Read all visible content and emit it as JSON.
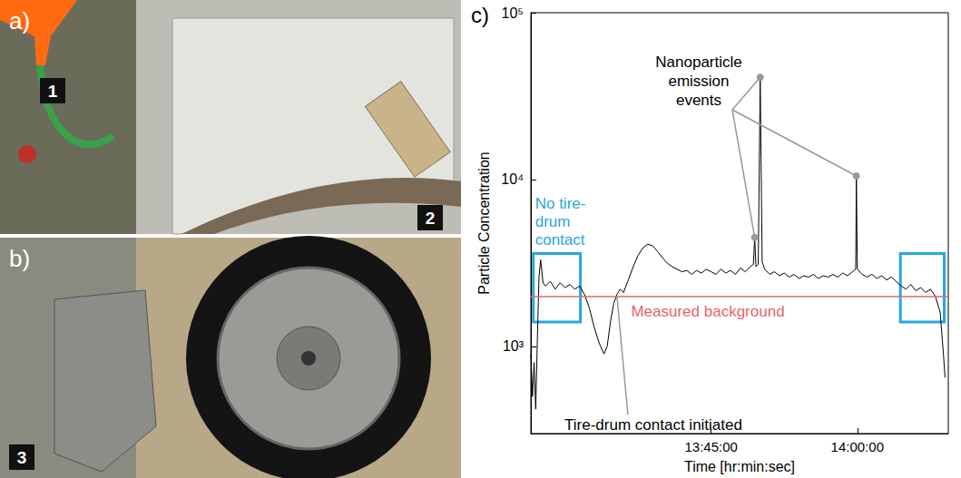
{
  "panels": [
    {
      "label": "a)",
      "markers": [
        "1",
        "2"
      ]
    },
    {
      "label": "b)",
      "markers": [
        "3"
      ]
    },
    {
      "label": "c)"
    }
  ],
  "chart_data": {
    "type": "line",
    "log": "y",
    "grid": false,
    "xlabel": "Time [hr:min:sec]",
    "ylabel": "Particle Concentration",
    "xlim": [
      "13:26:30",
      "14:09:20"
    ],
    "xticks": [
      "13:45:00",
      "14:00:00"
    ],
    "ylim": [
      300,
      100000
    ],
    "yticks": [
      {
        "value": 1000,
        "label": "10³"
      },
      {
        "value": 10000,
        "label": "10⁴"
      },
      {
        "value": 100000,
        "label": "10⁵"
      }
    ],
    "x": [
      "13:26:30",
      "13:26:40",
      "13:26:50",
      "13:27:00",
      "13:27:10",
      "13:27:20",
      "13:27:30",
      "13:27:45",
      "13:28:00",
      "13:28:30",
      "13:29:00",
      "13:29:30",
      "13:30:00",
      "13:30:30",
      "13:31:00",
      "13:31:30",
      "13:32:00",
      "13:32:30",
      "13:33:00",
      "13:33:30",
      "13:34:00",
      "13:34:20",
      "13:34:40",
      "13:35:00",
      "13:35:20",
      "13:35:40",
      "13:36:00",
      "13:36:30",
      "13:37:00",
      "13:37:30",
      "13:38:00",
      "13:38:30",
      "13:39:00",
      "13:39:30",
      "13:40:00",
      "13:40:30",
      "13:41:00",
      "13:41:30",
      "13:42:00",
      "13:42:30",
      "13:43:00",
      "13:43:30",
      "13:44:00",
      "13:44:30",
      "13:45:00",
      "13:45:30",
      "13:46:00",
      "13:46:30",
      "13:47:00",
      "13:47:30",
      "13:48:00",
      "13:48:30",
      "13:49:00",
      "13:49:20",
      "13:49:28",
      "13:49:36",
      "13:49:50",
      "13:50:02",
      "13:50:14",
      "13:50:30",
      "13:51:00",
      "13:51:30",
      "13:52:00",
      "13:52:30",
      "13:53:00",
      "13:53:30",
      "13:54:00",
      "13:54:30",
      "13:55:00",
      "13:55:30",
      "13:56:00",
      "13:56:30",
      "13:57:00",
      "13:57:30",
      "13:58:00",
      "13:58:30",
      "13:59:00",
      "13:59:30",
      "13:59:50",
      "13:59:54",
      "14:00:00",
      "14:00:30",
      "14:01:00",
      "14:01:30",
      "14:02:00",
      "14:02:30",
      "14:03:00",
      "14:03:30",
      "14:04:00",
      "14:04:30",
      "14:05:00",
      "14:05:30",
      "14:06:00",
      "14:06:30",
      "14:07:00",
      "14:07:30",
      "14:08:00",
      "14:08:30",
      "14:08:50",
      "14:09:00"
    ],
    "series": [
      {
        "color": "#000000",
        "values": [
          900,
          500,
          800,
          420,
          1100,
          2600,
          3300,
          2400,
          2300,
          2450,
          2200,
          2400,
          2250,
          2350,
          2200,
          2300,
          2050,
          1700,
          1300,
          1050,
          900,
          1000,
          1400,
          1800,
          2050,
          2200,
          2100,
          2500,
          3000,
          3500,
          3900,
          4100,
          4000,
          3700,
          3400,
          3150,
          3000,
          2900,
          2800,
          2850,
          2700,
          2850,
          2750,
          2900,
          2800,
          2700,
          2900,
          2750,
          2850,
          2700,
          2950,
          2800,
          3000,
          3100,
          4500,
          3000,
          3100,
          41000,
          3200,
          2900,
          2700,
          2800,
          2650,
          2750,
          2600,
          2700,
          2550,
          2650,
          2600,
          2700,
          2550,
          2650,
          2600,
          2700,
          2600,
          2750,
          2650,
          2800,
          2900,
          10500,
          2900,
          2700,
          2600,
          2700,
          2550,
          2650,
          2500,
          2600,
          2450,
          2300,
          2200,
          2350,
          2150,
          2250,
          2100,
          2200,
          2000,
          1600,
          900,
          650
        ]
      }
    ],
    "background": {
      "label": "Measured background",
      "value": 2000,
      "color": "#e8646c"
    },
    "regions": {
      "label": "No tire-drum contact",
      "color": "#2aa6e0",
      "spans": [
        {
          "x": [
            "13:26:45",
            "13:31:35"
          ],
          "y": [
            1400,
            3600
          ]
        },
        {
          "x": [
            "14:04:25",
            "14:08:55"
          ],
          "y": [
            1400,
            3600
          ]
        }
      ]
    },
    "annotations": [
      {
        "text": "Nanoparticle emission events",
        "x": [
          "13:49:28",
          "13:50:02",
          "13:59:54"
        ],
        "color": "#999999"
      },
      {
        "text": "Tire-drum contact initiated",
        "x": [
          "13:35:20"
        ],
        "color": "#999999"
      }
    ]
  }
}
